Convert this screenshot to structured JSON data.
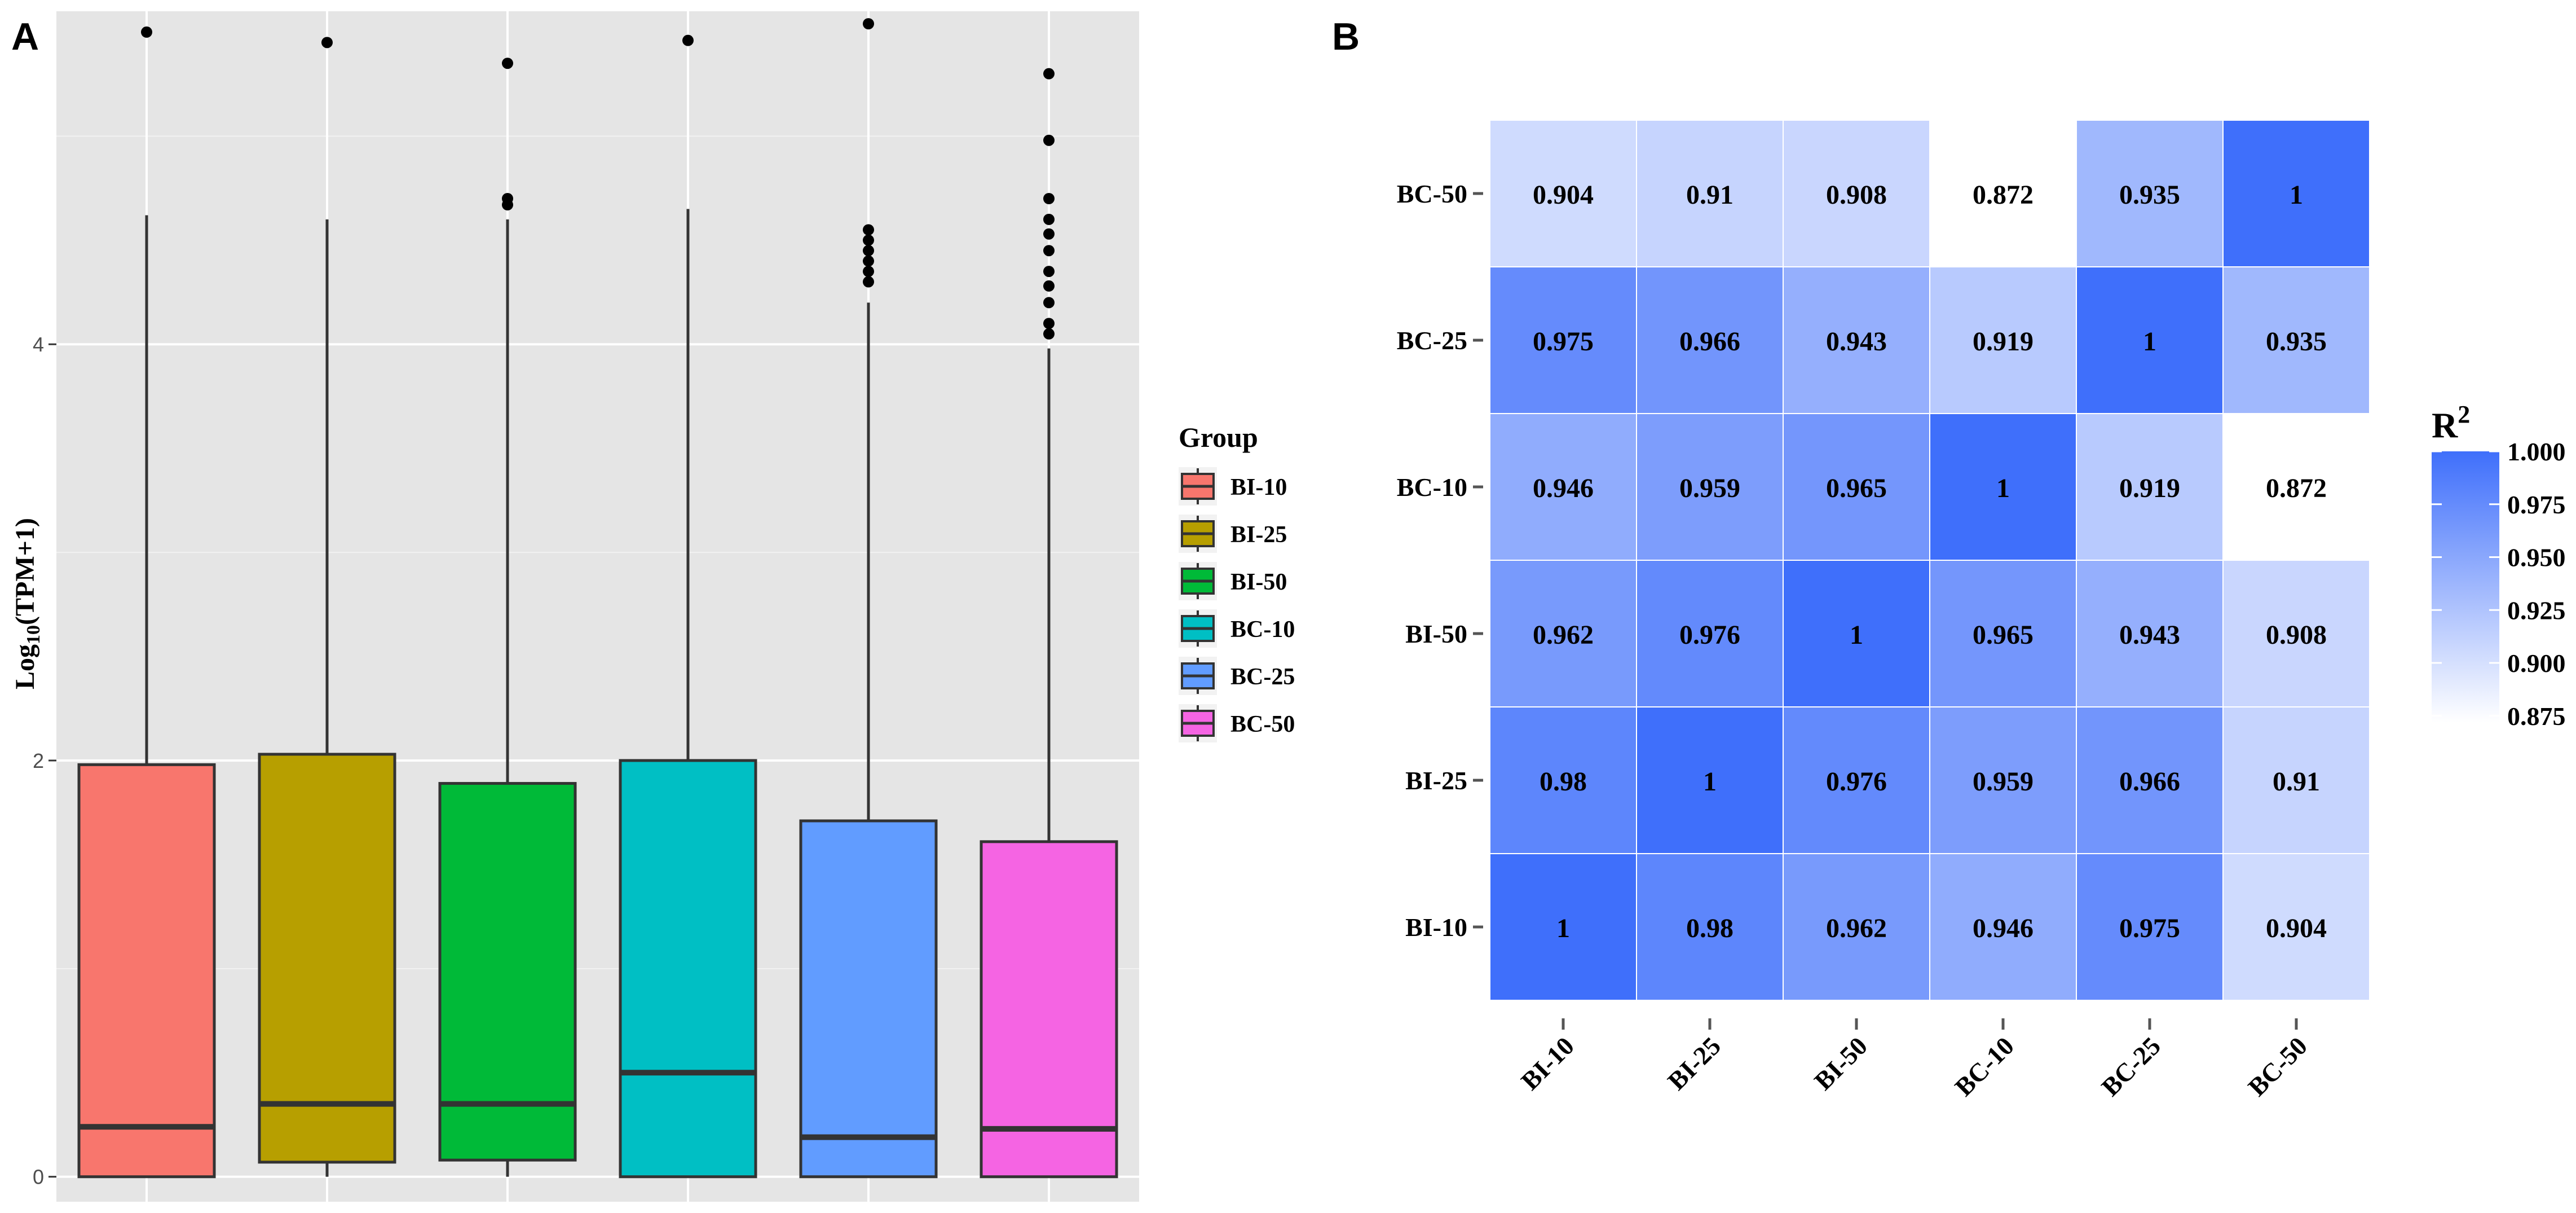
{
  "chart_data": [
    {
      "panel_label": "A",
      "type": "box",
      "ylabel": "Log10(TPM+1)",
      "ylabel_main": "Log",
      "ylabel_sub": "10",
      "ylabel_tail": "(TPM+1)",
      "ylim": [
        -0.12,
        5.6
      ],
      "yticks": [
        0,
        2,
        4
      ],
      "ytick_labels": [
        "0",
        "2",
        "4"
      ],
      "legend_title": "Group",
      "groups": [
        {
          "name": "BI-10",
          "color": "#F8766D",
          "q1": 0.0,
          "median": 0.24,
          "q3": 1.98,
          "whisker_low": 0.0,
          "whisker_high": 4.62,
          "outliers": [
            5.5
          ]
        },
        {
          "name": "BI-25",
          "color": "#B79F00",
          "q1": 0.07,
          "median": 0.35,
          "q3": 2.03,
          "whisker_low": 0.0,
          "whisker_high": 4.6,
          "outliers": [
            5.45
          ]
        },
        {
          "name": "BI-50",
          "color": "#00BA38",
          "q1": 0.08,
          "median": 0.35,
          "q3": 1.89,
          "whisker_low": 0.0,
          "whisker_high": 4.6,
          "outliers": [
            4.67,
            4.7,
            5.35
          ]
        },
        {
          "name": "BC-10",
          "color": "#00BFC4",
          "q1": 0.0,
          "median": 0.5,
          "q3": 2.0,
          "whisker_low": 0.0,
          "whisker_high": 4.65,
          "outliers": [
            5.46
          ]
        },
        {
          "name": "BC-25",
          "color": "#619CFF",
          "q1": 0.0,
          "median": 0.19,
          "q3": 1.71,
          "whisker_low": 0.0,
          "whisker_high": 4.2,
          "outliers": [
            4.3,
            4.35,
            4.4,
            4.45,
            4.5,
            4.55,
            5.54
          ]
        },
        {
          "name": "BC-50",
          "color": "#F564E3",
          "q1": 0.0,
          "median": 0.23,
          "q3": 1.61,
          "whisker_low": 0.0,
          "whisker_high": 3.98,
          "outliers": [
            4.05,
            4.1,
            4.2,
            4.28,
            4.35,
            4.45,
            4.53,
            4.6,
            4.7,
            4.98,
            5.3
          ]
        }
      ]
    },
    {
      "panel_label": "B",
      "type": "heatmap",
      "x_categories": [
        "BI-10",
        "BI-25",
        "BI-50",
        "BC-10",
        "BC-25",
        "BC-50"
      ],
      "y_categories": [
        "BI-10",
        "BI-25",
        "BI-50",
        "BC-10",
        "BC-25",
        "BC-50"
      ],
      "values": [
        [
          "1",
          "0.98",
          "0.962",
          "0.946",
          "0.975",
          "0.904"
        ],
        [
          "0.98",
          "1",
          "0.976",
          "0.959",
          "0.966",
          "0.91"
        ],
        [
          "0.962",
          "0.976",
          "1",
          "0.965",
          "0.943",
          "0.908"
        ],
        [
          "0.946",
          "0.959",
          "0.965",
          "1",
          "0.919",
          "0.872"
        ],
        [
          "0.975",
          "0.966",
          "0.943",
          "0.919",
          "1",
          "0.935"
        ],
        [
          "0.904",
          "0.91",
          "0.908",
          "0.872",
          "0.935",
          "1"
        ]
      ],
      "color_low": "#FFFFFF",
      "color_high": "#3F6FFB",
      "value_range": [
        0.872,
        1.0
      ],
      "legend_title": "R2",
      "legend_title_main": "R",
      "legend_title_sup": "2",
      "legend_ticks": [
        "1.000",
        "0.975",
        "0.950",
        "0.925",
        "0.900",
        "0.875"
      ]
    }
  ]
}
